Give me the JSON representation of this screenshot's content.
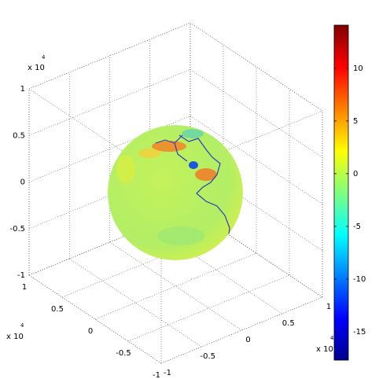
{
  "chart_data": {
    "type": "surface3d",
    "xlim": [
      -1,
      1
    ],
    "xticks": [
      -1,
      -0.5,
      0,
      0.5,
      1
    ],
    "ylim": [
      -1,
      1
    ],
    "yticks": [
      -1,
      -0.5,
      0,
      0.5,
      1
    ],
    "zlim": [
      -1,
      1
    ],
    "zticks": [
      -1,
      -0.5,
      0,
      0.5,
      1
    ],
    "axis_multiplier": {
      "text": "x 10",
      "exponent": "4"
    },
    "grid": true,
    "colormap": "jet",
    "clim": [
      -17.7,
      14.1
    ],
    "colorbar_ticks": [
      -15,
      -10,
      -5,
      0,
      5,
      10
    ]
  }
}
